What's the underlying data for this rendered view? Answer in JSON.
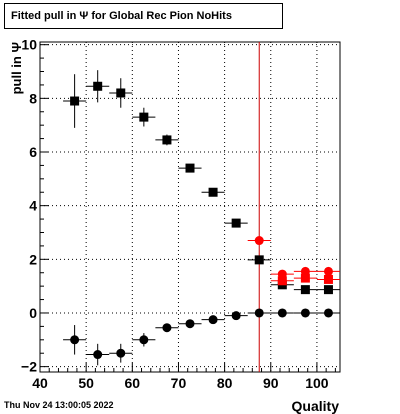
{
  "chart_data": {
    "type": "scatter",
    "title": "Fitted pull in  Ψ  for Global Rec Pion NoHits",
    "xlabel": "Quality",
    "ylabel": "pull in  Ψ",
    "xlim": [
      40,
      105
    ],
    "ylim": [
      -2.2,
      10.1
    ],
    "x_ticks": [
      "40",
      "50",
      "60",
      "70",
      "80",
      "90",
      "100"
    ],
    "y_ticks": [
      "−2",
      "0",
      "2",
      "4",
      "6",
      "8",
      "10"
    ],
    "grid": true,
    "legend": "none",
    "vertical_line": {
      "x": 87.5,
      "color": "#cc0000"
    },
    "series": [
      {
        "marker": "square",
        "color": "#000000",
        "points": [
          {
            "x": 47.5,
            "y": 7.9,
            "xerr": 2.5,
            "yerr": 1.0
          },
          {
            "x": 52.5,
            "y": 8.45,
            "xerr": 2.5,
            "yerr": 0.6
          },
          {
            "x": 57.5,
            "y": 8.2,
            "xerr": 2.5,
            "yerr": 0.55
          },
          {
            "x": 62.5,
            "y": 7.3,
            "xerr": 2.5,
            "yerr": 0.35
          },
          {
            "x": 67.5,
            "y": 6.45,
            "xerr": 2.5,
            "yerr": 0.2
          },
          {
            "x": 72.5,
            "y": 5.4,
            "xerr": 2.5,
            "yerr": 0.12
          },
          {
            "x": 77.5,
            "y": 4.5,
            "xerr": 2.5,
            "yerr": 0.1
          },
          {
            "x": 82.5,
            "y": 3.35,
            "xerr": 2.5,
            "yerr": 0.08
          },
          {
            "x": 87.5,
            "y": 1.98,
            "xerr": 2.5,
            "yerr": 0.06
          },
          {
            "x": 92.5,
            "y": 1.05,
            "xerr": 2.5,
            "yerr": 0.05
          },
          {
            "x": 97.5,
            "y": 0.87,
            "xerr": 2.5,
            "yerr": 0.04
          },
          {
            "x": 102.5,
            "y": 0.87,
            "xerr": 2.5,
            "yerr": 0.04
          }
        ]
      },
      {
        "marker": "circle",
        "color": "#000000",
        "points": [
          {
            "x": 47.5,
            "y": -1.0,
            "xerr": 2.5,
            "yerr": 0.55
          },
          {
            "x": 52.5,
            "y": -1.55,
            "xerr": 2.5,
            "yerr": 0.4
          },
          {
            "x": 57.5,
            "y": -1.5,
            "xerr": 2.5,
            "yerr": 0.35
          },
          {
            "x": 62.5,
            "y": -1.0,
            "xerr": 2.5,
            "yerr": 0.25
          },
          {
            "x": 67.5,
            "y": -0.55,
            "xerr": 2.5,
            "yerr": 0.15
          },
          {
            "x": 72.5,
            "y": -0.4,
            "xerr": 2.5,
            "yerr": 0.1
          },
          {
            "x": 77.5,
            "y": -0.25,
            "xerr": 2.5,
            "yerr": 0.08
          },
          {
            "x": 82.5,
            "y": -0.1,
            "xerr": 2.5,
            "yerr": 0.06
          },
          {
            "x": 87.5,
            "y": 0.0,
            "xerr": 2.5,
            "yerr": 0.05
          },
          {
            "x": 92.5,
            "y": 0.0,
            "xerr": 2.5,
            "yerr": 0.04
          },
          {
            "x": 97.5,
            "y": 0.0,
            "xerr": 2.5,
            "yerr": 0.04
          },
          {
            "x": 102.5,
            "y": 0.0,
            "xerr": 2.5,
            "yerr": 0.04
          }
        ]
      },
      {
        "marker": "square",
        "color": "#ff0000",
        "points": [
          {
            "x": 92.5,
            "y": 1.2,
            "xerr": 2.5,
            "yerr": 0.05
          },
          {
            "x": 97.5,
            "y": 1.3,
            "xerr": 2.5,
            "yerr": 0.05
          },
          {
            "x": 102.5,
            "y": 1.25,
            "xerr": 2.5,
            "yerr": 0.05
          }
        ]
      },
      {
        "marker": "circle",
        "color": "#ff0000",
        "points": [
          {
            "x": 87.5,
            "y": 2.7,
            "xerr": 2.5,
            "yerr": 0.06
          },
          {
            "x": 92.5,
            "y": 1.45,
            "xerr": 2.5,
            "yerr": 0.05
          },
          {
            "x": 97.5,
            "y": 1.55,
            "xerr": 2.5,
            "yerr": 0.05
          },
          {
            "x": 102.5,
            "y": 1.55,
            "xerr": 2.5,
            "yerr": 0.05
          }
        ]
      }
    ]
  },
  "footer": {
    "timestamp": "Thu Nov 24 13:00:05 2022"
  }
}
